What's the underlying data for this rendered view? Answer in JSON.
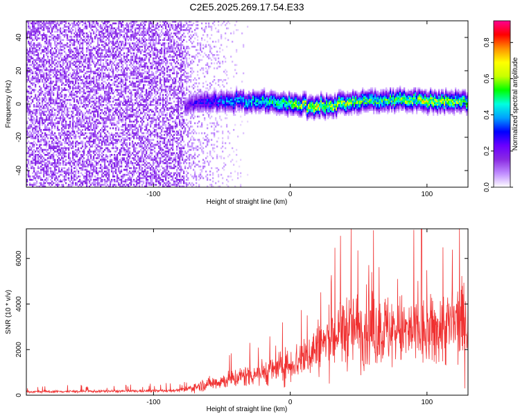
{
  "title": "C2E5.2025.269.17.54.E33",
  "chart_data": [
    {
      "type": "heatmap",
      "name": "spectrogram",
      "xlabel": "Height of straight line (km)",
      "ylabel": "Frequency (Hz)",
      "xlim": [
        -193,
        130
      ],
      "ylim": [
        -50,
        50
      ],
      "xticks": [
        -100,
        0,
        100
      ],
      "yticks": [
        -40,
        -20,
        0,
        20,
        40
      ],
      "colorbar": {
        "label": "Normalized spectral amplitude",
        "range": [
          0.0,
          0.92
        ],
        "ticks": [
          0.0,
          0.2,
          0.4,
          0.6,
          0.8
        ],
        "colormap": [
          "#ffffff",
          "#c08cff",
          "#8a2be2",
          "#6a00ff",
          "#0000ff",
          "#00a0ff",
          "#00ffe0",
          "#00ff00",
          "#c8ff00",
          "#ffff00",
          "#ff9000",
          "#ff0000",
          "#ff0090"
        ]
      },
      "regions": [
        {
          "description": "broadband noise",
          "x_range": [
            -193,
            -78
          ],
          "freq_range": [
            -50,
            50
          ],
          "amplitude": 0.12
        },
        {
          "description": "fading noise",
          "x_range": [
            -78,
            -30
          ],
          "freq_range": [
            -50,
            50
          ],
          "amplitude": 0.05
        }
      ],
      "signal_track": [
        {
          "x": -75,
          "f": 0.0,
          "amp": 0.2
        },
        {
          "x": -60,
          "f": 2.0,
          "amp": 0.3
        },
        {
          "x": -40,
          "f": 2.5,
          "amp": 0.38
        },
        {
          "x": -20,
          "f": 2.0,
          "amp": 0.45
        },
        {
          "x": 0,
          "f": 0.5,
          "amp": 0.52
        },
        {
          "x": 20,
          "f": -1.5,
          "amp": 0.62
        },
        {
          "x": 40,
          "f": 1.0,
          "amp": 0.56
        },
        {
          "x": 60,
          "f": 2.5,
          "amp": 0.48
        },
        {
          "x": 80,
          "f": 3.5,
          "amp": 0.52
        },
        {
          "x": 100,
          "f": 2.0,
          "amp": 0.6
        },
        {
          "x": 120,
          "f": 2.0,
          "amp": 0.55
        },
        {
          "x": 130,
          "f": 2.5,
          "amp": 0.5
        }
      ]
    },
    {
      "type": "line",
      "name": "snr",
      "xlabel": "Height of straight line (km)",
      "ylabel": "SNR (10 * v/v)",
      "xlim": [
        -193,
        130
      ],
      "ylim": [
        0,
        7300
      ],
      "xticks": [
        -100,
        0,
        100
      ],
      "yticks": [
        0,
        2000,
        4000,
        6000
      ],
      "color": "#f03030",
      "series": [
        {
          "name": "SNR",
          "x": [
            -193,
            -170,
            -150,
            -130,
            -110,
            -90,
            -78,
            -70,
            -60,
            -50,
            -40,
            -30,
            -20,
            -10,
            0,
            10,
            20,
            30,
            40,
            50,
            60,
            70,
            80,
            90,
            100,
            110,
            120,
            130
          ],
          "values": [
            150,
            160,
            170,
            175,
            180,
            200,
            230,
            350,
            500,
            620,
            750,
            900,
            1000,
            1150,
            1350,
            1650,
            2100,
            2500,
            2900,
            2900,
            2850,
            2850,
            2800,
            2750,
            2650,
            2950,
            3100,
            3300
          ]
        }
      ],
      "peak": {
        "x": 96,
        "value": 7300
      }
    }
  ]
}
